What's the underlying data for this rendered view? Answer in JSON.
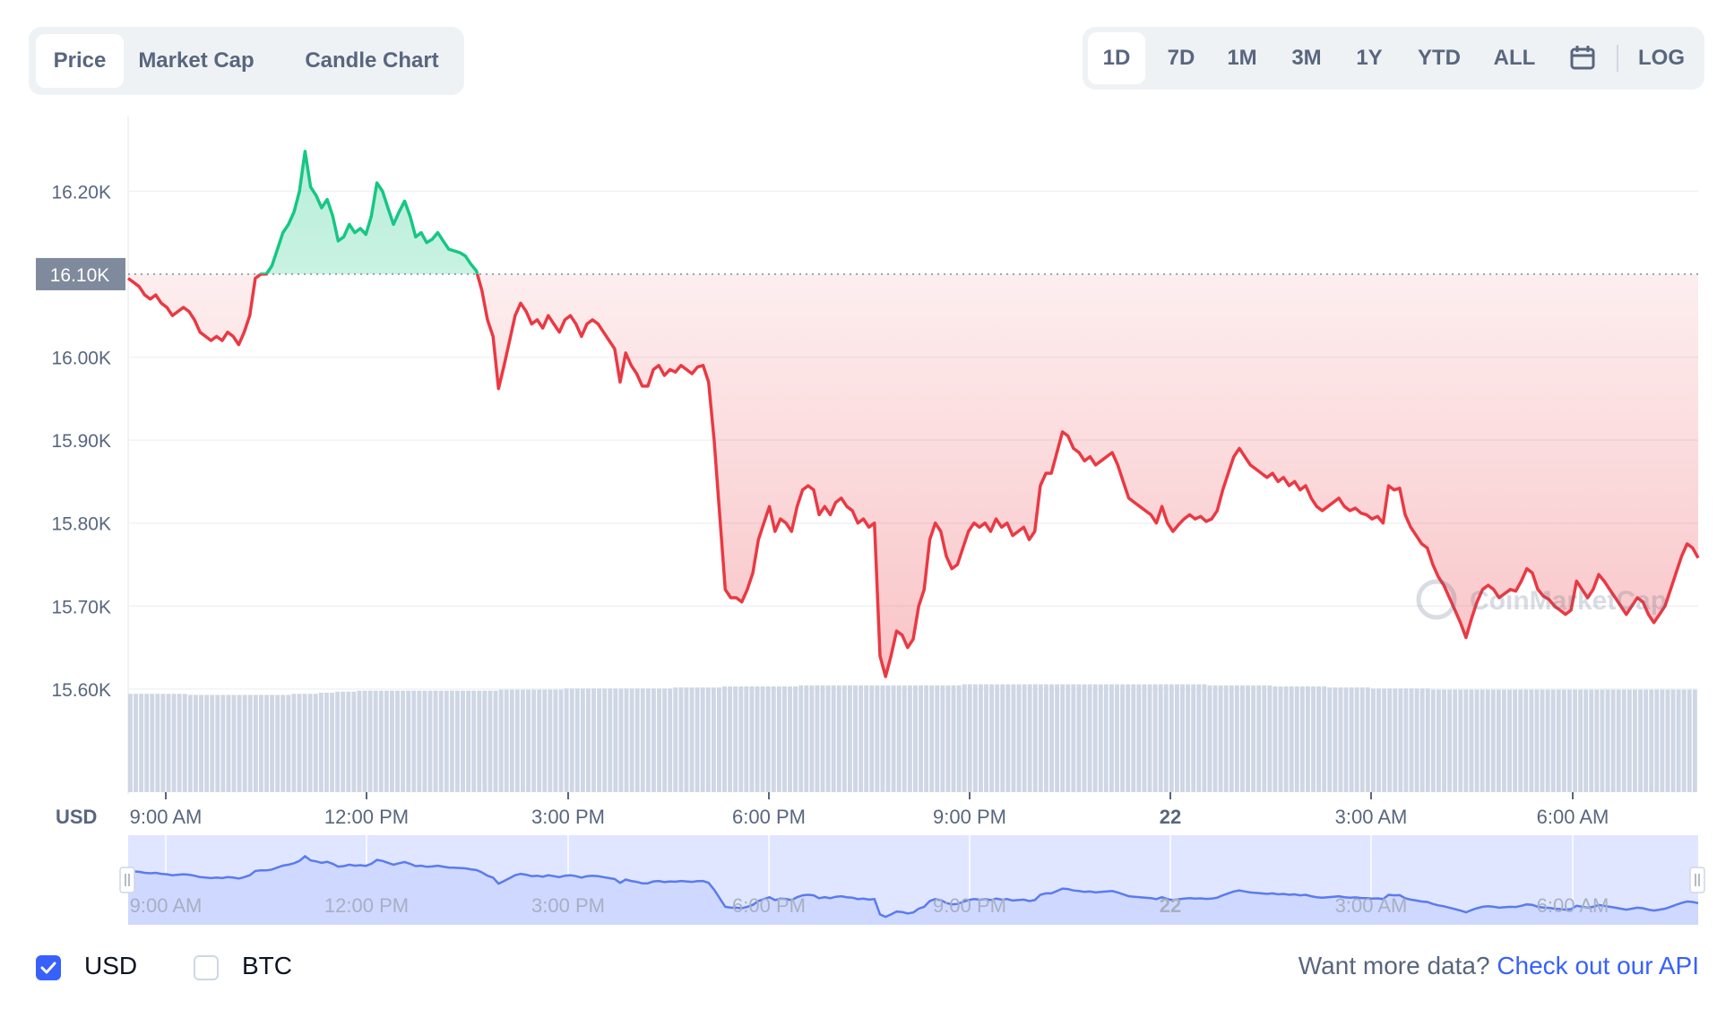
{
  "tabs": {
    "left": [
      "Price",
      "Market Cap",
      "Candle Chart"
    ],
    "left_active": "Price",
    "right": [
      "1D",
      "7D",
      "1M",
      "3M",
      "1Y",
      "YTD",
      "ALL"
    ],
    "right_active": "1D",
    "calendar_icon": "calendar-icon",
    "log_label": "LOG"
  },
  "currency_label": "USD",
  "watermark": "CoinMarketCap",
  "reference_price_label": "16.10K",
  "colors": {
    "up": "#16c784",
    "down": "#ea3943",
    "accent": "#3861fb",
    "volume": "#cfd6e4",
    "navigator_fill": "#e0e6ff",
    "navigator_line": "#5a7bf0"
  },
  "chart_data": {
    "type": "line",
    "y_tick_labels": [
      "15.60K",
      "15.70K",
      "15.80K",
      "15.90K",
      "16.00K",
      "16.10K",
      "16.20K"
    ],
    "y_ticks": [
      15600,
      15700,
      15800,
      15900,
      16000,
      16100,
      16200
    ],
    "x_tick_labels": [
      "9:00 AM",
      "12:00 PM",
      "3:00 PM",
      "6:00 PM",
      "9:00 PM",
      "22",
      "3:00 AM",
      "6:00 AM"
    ],
    "ylim": [
      15480,
      16290
    ],
    "baseline": 16100,
    "series": [
      {
        "values": [
          16095,
          16090,
          16085,
          16075,
          16070,
          16075,
          16065,
          16060,
          16050,
          16055,
          16060,
          16055,
          16045,
          16030,
          16025,
          16020,
          16025,
          16020,
          16030,
          16025,
          16015,
          16030,
          16050,
          16095,
          16100,
          16100,
          16110,
          16130,
          16150,
          16160,
          16175,
          16200,
          16248,
          16205,
          16195,
          16180,
          16190,
          16170,
          16140,
          16145,
          16160,
          16150,
          16155,
          16148,
          16170,
          16210,
          16200,
          16180,
          16160,
          16175,
          16188,
          16170,
          16145,
          16150,
          16138,
          16142,
          16150,
          16140,
          16130,
          16128,
          16126,
          16122,
          16112,
          16104,
          16080,
          16045,
          16025,
          15962,
          15990,
          16020,
          16050,
          16065,
          16055,
          16040,
          16045,
          16035,
          16050,
          16040,
          16030,
          16045,
          16050,
          16040,
          16025,
          16040,
          16045,
          16040,
          16030,
          16020,
          16010,
          15970,
          16005,
          15990,
          15980,
          15965,
          15965,
          15985,
          15990,
          15978,
          15985,
          15982,
          15990,
          15985,
          15980,
          15988,
          15990,
          15970,
          15900,
          15810,
          15720,
          15710,
          15710,
          15705,
          15720,
          15740,
          15780,
          15800,
          15820,
          15790,
          15805,
          15800,
          15790,
          15820,
          15840,
          15845,
          15840,
          15810,
          15820,
          15810,
          15825,
          15830,
          15820,
          15815,
          15800,
          15805,
          15795,
          15800,
          15640,
          15615,
          15640,
          15670,
          15665,
          15650,
          15660,
          15700,
          15720,
          15780,
          15800,
          15790,
          15760,
          15745,
          15750,
          15770,
          15790,
          15800,
          15795,
          15800,
          15790,
          15805,
          15795,
          15800,
          15785,
          15790,
          15795,
          15780,
          15790,
          15845,
          15860,
          15860,
          15885,
          15910,
          15905,
          15890,
          15885,
          15875,
          15880,
          15870,
          15875,
          15880,
          15885,
          15870,
          15850,
          15830,
          15825,
          15820,
          15815,
          15810,
          15800,
          15820,
          15800,
          15790,
          15798,
          15805,
          15810,
          15805,
          15808,
          15802,
          15805,
          15815,
          15840,
          15860,
          15880,
          15890,
          15880,
          15870,
          15865,
          15860,
          15855,
          15860,
          15850,
          15855,
          15845,
          15850,
          15840,
          15845,
          15830,
          15820,
          15815,
          15820,
          15825,
          15830,
          15820,
          15815,
          15818,
          15812,
          15810,
          15805,
          15808,
          15800,
          15845,
          15840,
          15842,
          15810,
          15795,
          15785,
          15775,
          15770,
          15750,
          15735,
          15725,
          15710,
          15695,
          15680,
          15662,
          15685,
          15705,
          15720,
          15725,
          15720,
          15710,
          15715,
          15720,
          15718,
          15730,
          15745,
          15740,
          15720,
          15712,
          15708,
          15700,
          15695,
          15690,
          15695,
          15730,
          15720,
          15710,
          15720,
          15738,
          15730,
          15720,
          15710,
          15700,
          15690,
          15700,
          15710,
          15705,
          15690,
          15680,
          15690,
          15700,
          15720,
          15740,
          15760,
          15775,
          15770,
          15758
        ]
      }
    ],
    "volume": [
      0.93,
      0.93,
      0.93,
      0.93,
      0.93,
      0.93,
      0.93,
      0.93,
      0.93,
      0.93,
      0.93,
      0.92,
      0.92,
      0.92,
      0.92,
      0.92,
      0.92,
      0.92,
      0.92,
      0.92,
      0.92,
      0.92,
      0.92,
      0.92,
      0.92,
      0.92,
      0.92,
      0.92,
      0.92,
      0.92,
      0.93,
      0.93,
      0.93,
      0.93,
      0.93,
      0.94,
      0.94,
      0.94,
      0.95,
      0.95,
      0.95,
      0.95,
      0.96,
      0.96,
      0.96,
      0.96,
      0.96,
      0.96,
      0.96,
      0.96,
      0.96,
      0.96,
      0.96,
      0.96,
      0.96,
      0.96,
      0.96,
      0.96,
      0.96,
      0.96,
      0.96,
      0.96,
      0.96,
      0.96,
      0.96,
      0.96,
      0.96,
      0.96,
      0.97,
      0.97,
      0.97,
      0.97,
      0.97,
      0.97,
      0.97,
      0.97,
      0.97,
      0.97,
      0.97,
      0.97,
      0.98,
      0.98,
      0.98,
      0.98,
      0.98,
      0.98,
      0.98,
      0.98,
      0.98,
      0.98,
      0.98,
      0.98,
      0.98,
      0.98,
      0.98,
      0.98,
      0.98,
      0.98,
      0.98,
      0.98,
      0.99,
      0.99,
      0.99,
      0.99,
      0.99,
      0.99,
      0.99,
      0.99,
      0.99,
      1.0,
      1.0,
      1.0,
      1.0,
      1.0,
      1.0,
      1.0,
      1.0,
      1.0,
      1.0,
      1.0,
      1.0,
      1.0,
      1.0,
      1.01,
      1.01,
      1.01,
      1.01,
      1.01,
      1.01,
      1.01,
      1.01,
      1.01,
      1.01,
      1.01,
      1.01,
      1.01,
      1.01,
      1.01,
      1.01,
      1.01,
      1.01,
      1.01,
      1.01,
      1.01,
      1.01,
      1.01,
      1.01,
      1.01,
      1.01,
      1.01,
      1.01,
      1.01,
      1.01,
      1.02,
      1.02,
      1.02,
      1.02,
      1.02,
      1.02,
      1.02,
      1.02,
      1.02,
      1.02,
      1.02,
      1.02,
      1.02,
      1.02,
      1.02,
      1.02,
      1.02,
      1.02,
      1.02,
      1.02,
      1.02,
      1.02,
      1.02,
      1.02,
      1.02,
      1.02,
      1.02,
      1.02,
      1.02,
      1.02,
      1.02,
      1.02,
      1.02,
      1.02,
      1.02,
      1.02,
      1.02,
      1.02,
      1.02,
      1.02,
      1.02,
      1.02,
      1.02,
      1.02,
      1.02,
      1.01,
      1.01,
      1.01,
      1.01,
      1.01,
      1.01,
      1.01,
      1.01,
      1.01,
      1.01,
      1.01,
      1.01,
      1.0,
      1.0,
      1.0,
      1.0,
      1.0,
      1.0,
      1.0,
      1.0,
      1.0,
      1.0,
      0.99,
      0.99,
      0.99,
      0.99,
      0.99,
      0.99,
      0.99,
      0.99,
      0.98,
      0.98,
      0.98,
      0.98,
      0.98,
      0.98,
      0.98,
      0.98,
      0.98,
      0.98,
      0.98,
      0.97,
      0.97,
      0.97,
      0.97,
      0.97,
      0.97,
      0.97,
      0.97,
      0.97,
      0.97,
      0.97,
      0.97,
      0.97,
      0.97,
      0.97,
      0.97,
      0.97,
      0.97,
      0.97,
      0.97,
      0.97,
      0.97,
      0.97,
      0.97,
      0.97,
      0.97,
      0.97,
      0.97,
      0.97,
      0.97,
      0.97,
      0.97,
      0.97,
      0.97,
      0.97,
      0.97,
      0.97,
      0.97,
      0.97,
      0.97,
      0.97,
      0.97,
      0.97,
      0.97,
      0.97,
      0.97,
      0.97,
      0.97,
      0.97
    ]
  },
  "legend": {
    "usd_label": "USD",
    "btc_label": "BTC"
  },
  "api": {
    "prefix": "Want more data?",
    "link": "Check out our API"
  }
}
